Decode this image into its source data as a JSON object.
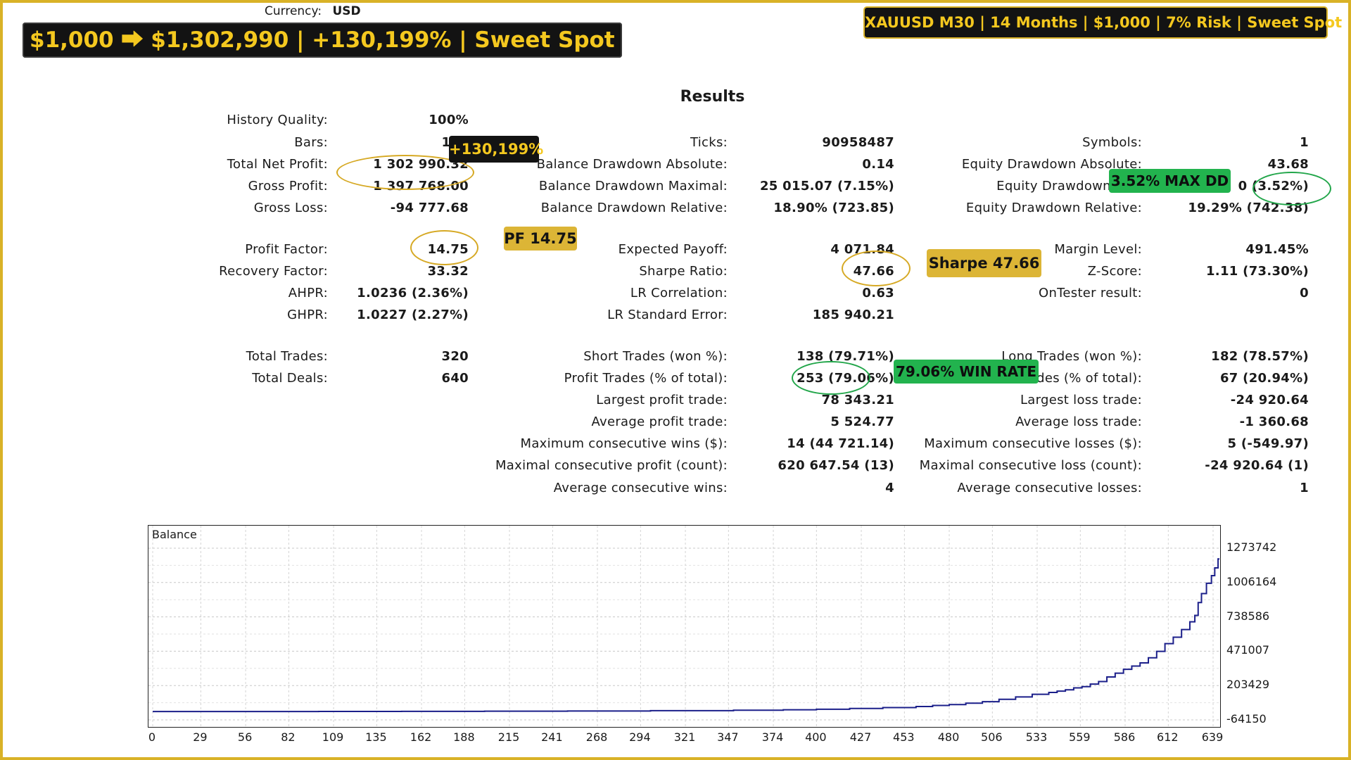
{
  "header": {
    "currency_label": "Currency:",
    "currency_value": "USD",
    "headline": "$1,000 ⮕ $1,302,990 | +130,199% | Sweet Spot",
    "topright": "XAUUSD M30 | 14 Months | $1,000 | 7% Risk | Sweet Spot"
  },
  "results_title": "Results",
  "stats": {
    "history_quality": {
      "label": "History Quality:",
      "value": "100%"
    },
    "bars": {
      "label": "Bars:",
      "value": "141"
    },
    "total_net_profit": {
      "label": "Total Net Profit:",
      "value": "1 302 990.32"
    },
    "gross_profit": {
      "label": "Gross Profit:",
      "value": "1 397 768.00"
    },
    "gross_loss": {
      "label": "Gross Loss:",
      "value": "-94 777.68"
    },
    "profit_factor": {
      "label": "Profit Factor:",
      "value": "14.75"
    },
    "recovery_factor": {
      "label": "Recovery Factor:",
      "value": "33.32"
    },
    "ahpr": {
      "label": "AHPR:",
      "value": "1.0236 (2.36%)"
    },
    "ghpr": {
      "label": "GHPR:",
      "value": "1.0227 (2.27%)"
    },
    "total_trades": {
      "label": "Total Trades:",
      "value": "320"
    },
    "total_deals": {
      "label": "Total Deals:",
      "value": "640"
    },
    "ticks": {
      "label": "Ticks:",
      "value": "90958487"
    },
    "balance_dd_abs": {
      "label": "Balance Drawdown Absolute:",
      "value": "0.14"
    },
    "balance_dd_max": {
      "label": "Balance Drawdown Maximal:",
      "value": "25 015.07 (7.15%)"
    },
    "balance_dd_rel": {
      "label": "Balance Drawdown Relative:",
      "value": "18.90% (723.85)"
    },
    "expected_payoff": {
      "label": "Expected Payoff:",
      "value": "4 071.84"
    },
    "sharpe_ratio": {
      "label": "Sharpe Ratio:",
      "value": "47.66"
    },
    "lr_correlation": {
      "label": "LR Correlation:",
      "value": "0.63"
    },
    "lr_std_error": {
      "label": "LR Standard Error:",
      "value": "185 940.21"
    },
    "short_trades": {
      "label": "Short Trades (won %):",
      "value": "138 (79.71%)"
    },
    "profit_trades": {
      "label": "Profit Trades (% of total):",
      "value": "253 (79.06%)"
    },
    "largest_profit": {
      "label": "Largest profit trade:",
      "value": "78 343.21"
    },
    "average_profit": {
      "label": "Average profit trade:",
      "value": "5 524.77"
    },
    "max_consec_wins": {
      "label": "Maximum consecutive wins ($):",
      "value": "14 (44 721.14)"
    },
    "max_consec_profit": {
      "label": "Maximal consecutive profit (count):",
      "value": "620 647.54 (13)"
    },
    "avg_consec_wins": {
      "label": "Average consecutive wins:",
      "value": "4"
    },
    "symbols": {
      "label": "Symbols:",
      "value": "1"
    },
    "equity_dd_abs": {
      "label": "Equity Drawdown Absolute:",
      "value": "43.68"
    },
    "equity_dd_max": {
      "label": "Equity Drawdown Max",
      "value": "0 (3.52%)"
    },
    "equity_dd_rel": {
      "label": "Equity Drawdown Relative:",
      "value": "19.29% (742.38)"
    },
    "margin_level": {
      "label": "Margin Level:",
      "value": "491.45%"
    },
    "z_score": {
      "label": "Z-Score:",
      "value": "1.11 (73.30%)"
    },
    "ontester": {
      "label": "OnTester result:",
      "value": "0"
    },
    "long_trades": {
      "label": "Long Trades (won %):",
      "value": "182 (78.57%)"
    },
    "loss_trades": {
      "label": "Loss Trades (% of total):",
      "value": "67 (20.94%)"
    },
    "largest_loss": {
      "label": "Largest loss trade:",
      "value": "-24 920.64"
    },
    "average_loss": {
      "label": "Average loss trade:",
      "value": "-1 360.68"
    },
    "max_consec_losses": {
      "label": "Maximum consecutive losses ($):",
      "value": "5 (-549.97)"
    },
    "max_consec_loss": {
      "label": "Maximal consecutive loss (count):",
      "value": "-24 920.64 (1)"
    },
    "avg_consec_losses": {
      "label": "Average consecutive losses:",
      "value": "1"
    }
  },
  "badges": {
    "net_profit": "+130,199%",
    "profit_factor": "PF 14.75",
    "sharpe": "Sharpe 47.66",
    "max_dd": "3.52% MAX DD",
    "win_rate": "79.06% WIN RATE"
  },
  "colors": {
    "frame": "#d9b227",
    "badge_dark": "#131313",
    "badge_gold": "#dcb536",
    "badge_green": "#22b34e",
    "balance_line": "#1b1f8a"
  },
  "chart_data": {
    "type": "line",
    "title": "Balance",
    "x_ticks": [
      0,
      29,
      56,
      82,
      109,
      135,
      162,
      188,
      215,
      241,
      268,
      294,
      321,
      347,
      374,
      400,
      427,
      453,
      480,
      506,
      533,
      559,
      586,
      612,
      639
    ],
    "y_ticks": [
      1273742,
      1006164,
      738586,
      471007,
      203429,
      -64150
    ],
    "xlim": [
      0,
      650
    ],
    "ylim": [
      -64150,
      1407531
    ],
    "grid": true,
    "series": [
      {
        "values": [
          [
            0,
            1000
          ],
          [
            30,
            1100
          ],
          [
            60,
            1300
          ],
          [
            100,
            1700
          ],
          [
            150,
            2500
          ],
          [
            200,
            3600
          ],
          [
            250,
            5200
          ],
          [
            300,
            7600
          ],
          [
            350,
            11000
          ],
          [
            380,
            14500
          ],
          [
            400,
            19000
          ],
          [
            420,
            25000
          ],
          [
            440,
            32000
          ],
          [
            460,
            40000
          ],
          [
            470,
            48000
          ],
          [
            480,
            55000
          ],
          [
            490,
            66000
          ],
          [
            500,
            78000
          ],
          [
            510,
            96000
          ],
          [
            520,
            115000
          ],
          [
            530,
            135000
          ],
          [
            540,
            150000
          ],
          [
            545,
            160000
          ],
          [
            550,
            170000
          ],
          [
            555,
            185000
          ],
          [
            560,
            195000
          ],
          [
            565,
            215000
          ],
          [
            570,
            235000
          ],
          [
            575,
            270000
          ],
          [
            580,
            300000
          ],
          [
            585,
            330000
          ],
          [
            590,
            355000
          ],
          [
            595,
            380000
          ],
          [
            600,
            420000
          ],
          [
            605,
            470000
          ],
          [
            610,
            530000
          ],
          [
            615,
            580000
          ],
          [
            620,
            640000
          ],
          [
            625,
            700000
          ],
          [
            628,
            750000
          ],
          [
            630,
            850000
          ],
          [
            632,
            920000
          ],
          [
            635,
            1000000
          ],
          [
            638,
            1060000
          ],
          [
            640,
            1120000
          ],
          [
            642,
            1190000
          ],
          [
            644,
            1250000
          ],
          [
            646,
            1303990
          ]
        ]
      }
    ]
  }
}
